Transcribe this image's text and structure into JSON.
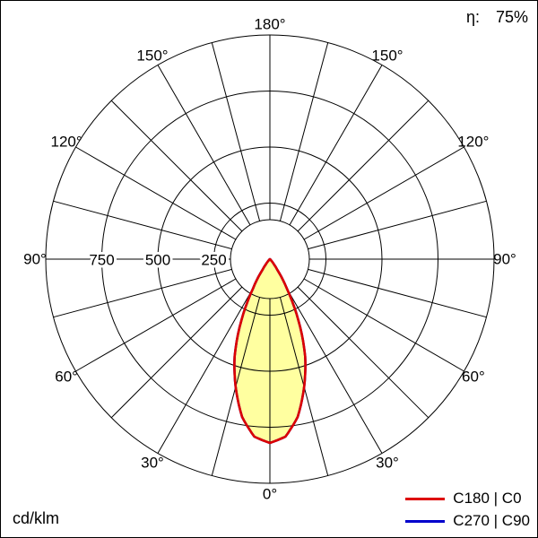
{
  "header": {
    "efficiency_label": "η:",
    "efficiency_value": "75%"
  },
  "footer": {
    "unit_label": "cd/klm"
  },
  "legend": [
    {
      "label": "C180 | C0",
      "color": "#dd0000"
    },
    {
      "label": "C270 | C90",
      "color": "#0000cc"
    }
  ],
  "chart_data": {
    "type": "polar",
    "title": "Luminous intensity distribution (polar)",
    "unit": "cd/klm",
    "efficiency_value": "75%",
    "rmax": 1000,
    "grid_circles": [
      250,
      500,
      750,
      1000
    ],
    "radial_tick_labels": [
      {
        "value": 750,
        "label": "750"
      },
      {
        "value": 500,
        "label": "500"
      },
      {
        "value": 250,
        "label": "250"
      }
    ],
    "spoke_step_deg": 15,
    "angle_label_step_deg": 30,
    "angle_labels": [
      "0°",
      "30°",
      "60°",
      "90°",
      "120°",
      "150°",
      "180°"
    ],
    "grid_color": "#000000",
    "series": [
      {
        "name": "C270 | C90",
        "color": "#0000cc",
        "fill": "#ffffa0",
        "points": [
          [
            -90,
            0
          ],
          [
            -75,
            0
          ],
          [
            -60,
            1
          ],
          [
            -50,
            3
          ],
          [
            -45,
            7
          ],
          [
            -40,
            18
          ],
          [
            -35,
            55
          ],
          [
            -30,
            150
          ],
          [
            -25,
            300
          ],
          [
            -20,
            460
          ],
          [
            -15,
            590
          ],
          [
            -10,
            715
          ],
          [
            -5,
            795
          ],
          [
            0,
            820
          ],
          [
            5,
            795
          ],
          [
            10,
            715
          ],
          [
            15,
            590
          ],
          [
            20,
            460
          ],
          [
            25,
            300
          ],
          [
            30,
            150
          ],
          [
            35,
            55
          ],
          [
            40,
            18
          ],
          [
            45,
            7
          ],
          [
            50,
            3
          ],
          [
            60,
            1
          ],
          [
            75,
            0
          ],
          [
            90,
            0
          ]
        ]
      },
      {
        "name": "C180 | C0",
        "color": "#dd0000",
        "fill": "#ffffa0",
        "points": [
          [
            -90,
            0
          ],
          [
            -75,
            0
          ],
          [
            -60,
            1
          ],
          [
            -50,
            3
          ],
          [
            -45,
            7
          ],
          [
            -40,
            18
          ],
          [
            -35,
            55
          ],
          [
            -30,
            150
          ],
          [
            -25,
            300
          ],
          [
            -20,
            460
          ],
          [
            -15,
            590
          ],
          [
            -10,
            715
          ],
          [
            -5,
            795
          ],
          [
            0,
            820
          ],
          [
            5,
            795
          ],
          [
            10,
            715
          ],
          [
            15,
            590
          ],
          [
            20,
            460
          ],
          [
            25,
            300
          ],
          [
            30,
            150
          ],
          [
            35,
            55
          ],
          [
            40,
            18
          ],
          [
            45,
            7
          ],
          [
            50,
            3
          ],
          [
            60,
            1
          ],
          [
            75,
            0
          ],
          [
            90,
            0
          ]
        ]
      }
    ]
  }
}
